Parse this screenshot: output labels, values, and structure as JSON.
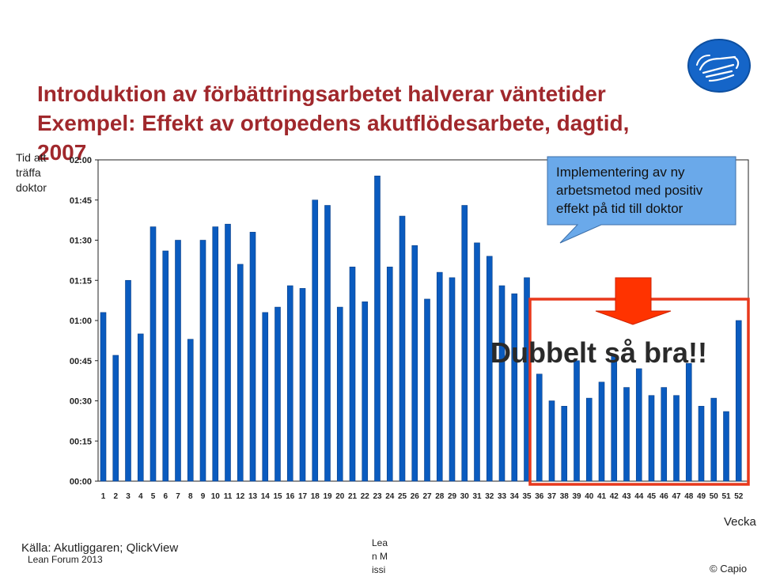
{
  "slide": {
    "title_line1": "Introduktion av förbättringsarbetet halverar väntetider",
    "title_line2": "Exempel: Effekt av ortopedens akutflödesarbete, dagtid,",
    "title_line3": "2007",
    "callout_text": "Implementering av ny arbetsmetod med positiv effekt på tid till doktor",
    "highlight_text": "Dubbelt så bra!!",
    "source_text": "Källa: Akutliggaren; QlickView",
    "footer_event": "Lean Forum 2013",
    "footer_fragment": "Lean Missi",
    "copyright": "© Capio",
    "logo_icon": "capio-hand-logo-icon"
  },
  "colors": {
    "title": "#a0282c",
    "bar": "#0a5bbf",
    "highlight_box": "#e8381c",
    "arrow": "#ff3300",
    "callout_fill": "#6aa9ea",
    "logo": "#1565c8"
  },
  "chart_data": {
    "type": "bar",
    "ylabel": "Tid att träffa doktor",
    "xlabel": "Vecka",
    "y_unit": "minutes",
    "ylim": [
      0,
      120
    ],
    "y_ticks": [
      "00:00",
      "00:15",
      "00:30",
      "00:45",
      "01:00",
      "01:15",
      "01:30",
      "01:45",
      "02:00"
    ],
    "categories": [
      "1",
      "2",
      "3",
      "4",
      "5",
      "6",
      "7",
      "8",
      "9",
      "10",
      "11",
      "12",
      "13",
      "14",
      "15",
      "16",
      "17",
      "18",
      "19",
      "20",
      "21",
      "22",
      "23",
      "24",
      "25",
      "26",
      "27",
      "28",
      "29",
      "30",
      "31",
      "32",
      "33",
      "34",
      "35",
      "36",
      "37",
      "38",
      "39",
      "40",
      "41",
      "42",
      "43",
      "44",
      "45",
      "46",
      "47",
      "48",
      "49",
      "50",
      "51",
      "52"
    ],
    "values": [
      63,
      47,
      75,
      55,
      95,
      86,
      90,
      53,
      90,
      95,
      96,
      81,
      93,
      63,
      65,
      73,
      72,
      105,
      103,
      65,
      80,
      67,
      114,
      80,
      99,
      88,
      68,
      78,
      76,
      103,
      89,
      84,
      73,
      70,
      76,
      40,
      30,
      28,
      45,
      31,
      37,
      47,
      35,
      42,
      32,
      35,
      32,
      44,
      28,
      31,
      26,
      60
    ],
    "grid": false,
    "legend": "none"
  }
}
